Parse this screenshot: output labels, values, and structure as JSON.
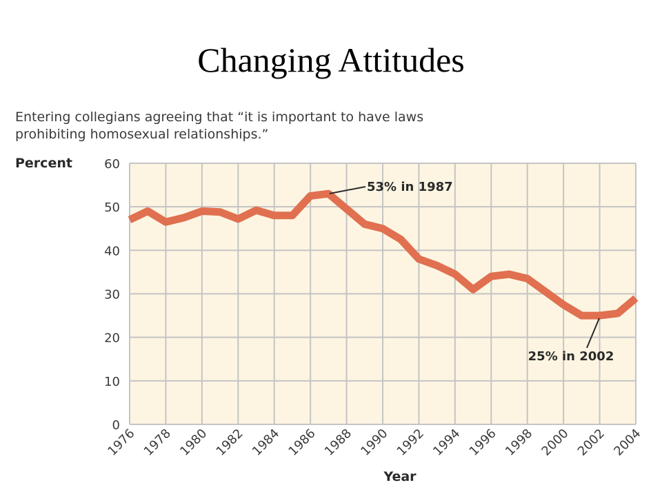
{
  "slide": {
    "title": "Changing Attitudes"
  },
  "chart_data": {
    "type": "line",
    "subtitle": "Entering collegians agreeing that “it is important to have laws prohibiting homosexual relationships.”",
    "subtitle_lines": [
      "Entering collegians agreeing that “it is important to have laws",
      "prohibiting homosexual relationships.”"
    ],
    "xlabel": "Year",
    "ylabel": "Percent",
    "xlim": [
      1976,
      2004
    ],
    "ylim": [
      0,
      60
    ],
    "yticks": [
      0,
      10,
      20,
      30,
      40,
      50,
      60
    ],
    "xtick_labels": [
      "1976",
      "1978",
      "1980",
      "1982",
      "1984",
      "1986",
      "1988",
      "1990",
      "1992",
      "1994",
      "1996",
      "1998",
      "2000",
      "2002",
      "2004"
    ],
    "grid": true,
    "series": [
      {
        "x": [
          1976,
          1977,
          1978,
          1979,
          1980,
          1981,
          1982,
          1983,
          1984,
          1985,
          1986,
          1987,
          1988,
          1989,
          1990,
          1991,
          1992,
          1993,
          1994,
          1995,
          1996,
          1997,
          1998,
          1999,
          2000,
          2001,
          2002,
          2003,
          2004
        ],
        "y": [
          47,
          49,
          46.5,
          47.5,
          49,
          48.8,
          47.2,
          49.2,
          48,
          48,
          52.5,
          53,
          49.5,
          46,
          45,
          42.5,
          38,
          36.5,
          34.5,
          31,
          34,
          34.5,
          33.5,
          30.5,
          27.5,
          25,
          25,
          25.5,
          29
        ]
      }
    ],
    "annotations": [
      {
        "text": "53% in 1987",
        "x": 1987,
        "y": 53
      },
      {
        "text": "25% in 2002",
        "x": 2002,
        "y": 25
      }
    ],
    "colors": {
      "line": "#E07050",
      "plot_background": "#FDF5E2",
      "grid": "#C4C4C4"
    }
  }
}
